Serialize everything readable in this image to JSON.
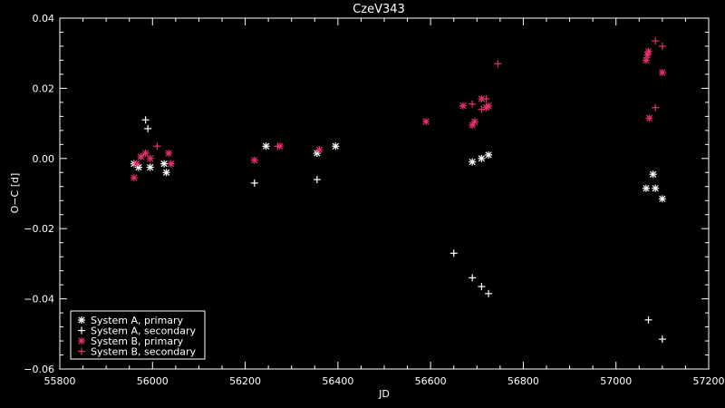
{
  "chart_data": {
    "type": "scatter",
    "title": "CzeV343",
    "xlabel": "JD",
    "ylabel": "O−C [d]",
    "xlim": [
      55800,
      57200
    ],
    "ylim": [
      -0.06,
      0.04
    ],
    "xticks": [
      55800,
      56000,
      56200,
      56400,
      56600,
      56800,
      57000,
      57200
    ],
    "xtick_labels": [
      "55800",
      "56000",
      "56200",
      "56400",
      "56600",
      "56800",
      "57000",
      "57200"
    ],
    "yticks": [
      -0.06,
      -0.04,
      -0.02,
      0.0,
      0.02,
      0.04
    ],
    "ytick_labels": [
      "−0.06",
      "−0.04",
      "−0.02",
      "0.00",
      "0.02",
      "0.04"
    ],
    "grid": false,
    "legend_position": "bottom-left",
    "colors": {
      "background": "#000000",
      "axes": "#ffffff",
      "system_a": "#ffffff",
      "system_b": "#e8306a"
    },
    "series": [
      {
        "name": "System A, primary",
        "marker": "asterisk",
        "color": "#ffffff",
        "points": [
          [
            55960,
            -0.0015
          ],
          [
            55970,
            -0.0025
          ],
          [
            55995,
            -0.0025
          ],
          [
            56025,
            -0.0015
          ],
          [
            56030,
            -0.004
          ],
          [
            56245,
            0.0035
          ],
          [
            56355,
            0.0015
          ],
          [
            56395,
            0.0035
          ],
          [
            56690,
            -0.001
          ],
          [
            56710,
            0.0
          ],
          [
            56725,
            0.001
          ],
          [
            57065,
            -0.0085
          ],
          [
            57080,
            -0.0045
          ],
          [
            57085,
            -0.0085
          ],
          [
            57100,
            -0.0115
          ]
        ]
      },
      {
        "name": "System A, secondary",
        "marker": "plus",
        "color": "#ffffff",
        "points": [
          [
            55985,
            0.011
          ],
          [
            55990,
            0.0085
          ],
          [
            56220,
            -0.007
          ],
          [
            56355,
            -0.006
          ],
          [
            56650,
            -0.027
          ],
          [
            56690,
            -0.034
          ],
          [
            56710,
            -0.0365
          ],
          [
            56725,
            -0.0385
          ],
          [
            57070,
            -0.046
          ],
          [
            57100,
            -0.0515
          ]
        ]
      },
      {
        "name": "System B, primary",
        "marker": "asterisk",
        "color": "#e8306a",
        "points": [
          [
            55960,
            -0.0055
          ],
          [
            55965,
            -0.0015
          ],
          [
            55975,
            0.0005
          ],
          [
            55985,
            0.0015
          ],
          [
            55995,
            0.0
          ],
          [
            56035,
            0.0015
          ],
          [
            56040,
            -0.0015
          ],
          [
            56220,
            -0.0005
          ],
          [
            56275,
            0.0035
          ],
          [
            56360,
            0.0025
          ],
          [
            56590,
            0.0105
          ],
          [
            56670,
            0.015
          ],
          [
            56690,
            0.0095
          ],
          [
            56695,
            0.0105
          ],
          [
            56710,
            0.017
          ],
          [
            56720,
            0.0145
          ],
          [
            56725,
            0.015
          ],
          [
            57065,
            0.028
          ],
          [
            57068,
            0.0295
          ],
          [
            57070,
            0.0305
          ],
          [
            57072,
            0.0115
          ],
          [
            57100,
            0.0245
          ]
        ]
      },
      {
        "name": "System B, secondary",
        "marker": "plus",
        "color": "#e8306a",
        "points": [
          [
            56010,
            0.0035
          ],
          [
            56270,
            0.0035
          ],
          [
            56690,
            0.0155
          ],
          [
            56710,
            0.014
          ],
          [
            56720,
            0.017
          ],
          [
            56745,
            0.027
          ],
          [
            57085,
            0.0335
          ],
          [
            57100,
            0.032
          ],
          [
            57085,
            0.0145
          ]
        ]
      }
    ]
  }
}
